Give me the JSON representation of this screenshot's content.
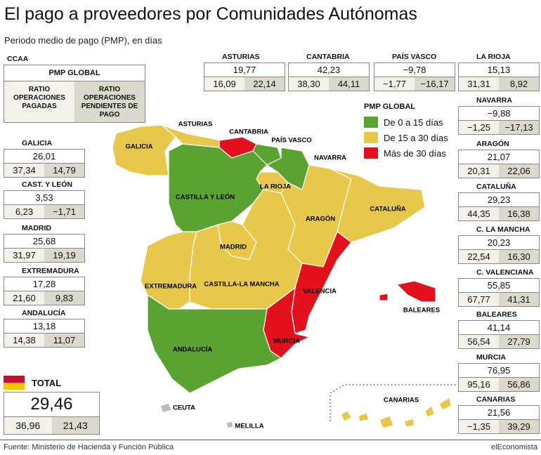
{
  "header": {
    "title": "El pago a proveedores por Comunidades Autónomas",
    "subtitle": "Periodo medio de pago (PMP), en días"
  },
  "key": {
    "ccaa": "CCAA",
    "pmp": "PMP GLOBAL",
    "paid": "RATIO OPERACIONES PAGADAS",
    "pending": "RATIO OPERACIONES PENDIENTES DE PAGO"
  },
  "legend": {
    "title": "PMP GLOBAL",
    "items": [
      {
        "label": "De 0 a 15 días",
        "color": "#5aa333"
      },
      {
        "label": "De 15 a 30 días",
        "color": "#e8c84a"
      },
      {
        "label": "Más de 30 días",
        "color": "#e3101e"
      }
    ]
  },
  "regions": [
    {
      "name": "ASTURIAS",
      "pmp": "19,77",
      "paid": "16,09",
      "pending": "22,14"
    },
    {
      "name": "CANTABRIA",
      "pmp": "42,23",
      "paid": "38,30",
      "pending": "44,11"
    },
    {
      "name": "PAÍS VASCO",
      "pmp": "−9,78",
      "paid": "−1,77",
      "pending": "−16,17"
    },
    {
      "name": "LA RIOJA",
      "pmp": "15,13",
      "paid": "31,31",
      "pending": "8,92"
    },
    {
      "name": "GALICIA",
      "pmp": "26,01",
      "paid": "37,34",
      "pending": "14,79"
    },
    {
      "name": "CAST. Y LEÓN",
      "pmp": "3,53",
      "paid": "6,23",
      "pending": "−1,71"
    },
    {
      "name": "MADRID",
      "pmp": "25,68",
      "paid": "31,97",
      "pending": "19,19"
    },
    {
      "name": "EXTREMADURA",
      "pmp": "17,28",
      "paid": "21,60",
      "pending": "9,83"
    },
    {
      "name": "ANDALUCÍA",
      "pmp": "13,18",
      "paid": "14,38",
      "pending": "11,07"
    },
    {
      "name": "NAVARRA",
      "pmp": "−9,88",
      "paid": "−1,25",
      "pending": "−17,13"
    },
    {
      "name": "ARAGÓN",
      "pmp": "21,07",
      "paid": "20,31",
      "pending": "22,06"
    },
    {
      "name": "CATALUÑA",
      "pmp": "29,23",
      "paid": "44,35",
      "pending": "16,38"
    },
    {
      "name": "C. LA MANCHA",
      "pmp": "20,23",
      "paid": "22,54",
      "pending": "16,30"
    },
    {
      "name": "C. VALENCIANA",
      "pmp": "55,85",
      "paid": "67,77",
      "pending": "41,31"
    },
    {
      "name": "BALEARES",
      "pmp": "41,14",
      "paid": "56,54",
      "pending": "27,79"
    },
    {
      "name": "MURCIA",
      "pmp": "76,95",
      "paid": "95,16",
      "pending": "56,86"
    },
    {
      "name": "CANARIAS",
      "pmp": "21,56",
      "paid": "−1,35",
      "pending": "39,29"
    }
  ],
  "total": {
    "name": "TOTAL",
    "pmp": "29,46",
    "paid": "36,96",
    "pending": "21,43"
  },
  "map_labels": [
    {
      "label": "GALICIA",
      "color": "#e8c84a"
    },
    {
      "label": "ASTURIAS",
      "color": "#e8c84a"
    },
    {
      "label": "CANTABRIA",
      "color": "#e3101e"
    },
    {
      "label": "PAÍS VASCO",
      "color": "#5aa333"
    },
    {
      "label": "NAVARRA",
      "color": "#5aa333"
    },
    {
      "label": "LA RIOJA",
      "color": "#e8c84a"
    },
    {
      "label": "CASTILLA Y LEÓN",
      "color": "#5aa333"
    },
    {
      "label": "ARAGÓN",
      "color": "#e8c84a"
    },
    {
      "label": "CATALUÑA",
      "color": "#e8c84a"
    },
    {
      "label": "MADRID",
      "color": "#e8c84a"
    },
    {
      "label": "EXTREMADURA",
      "color": "#e8c84a"
    },
    {
      "label": "CASTILLA-LA MANCHA",
      "color": "#e8c84a"
    },
    {
      "label": "VALENCIA",
      "color": "#e3101e"
    },
    {
      "label": "BALEARES",
      "color": "#e3101e"
    },
    {
      "label": "MURCIA",
      "color": "#e3101e"
    },
    {
      "label": "ANDALUCÍA",
      "color": "#5aa333"
    },
    {
      "label": "CANARIAS",
      "color": "#e8c84a"
    },
    {
      "label": "CEUTA",
      "color": "#bbbbbb"
    },
    {
      "label": "MELILLA",
      "color": "#bbbbbb"
    }
  ],
  "footer": {
    "source": "Fuente: Ministerio de Hacienda y Función Pública",
    "brand": "elEconomista"
  }
}
